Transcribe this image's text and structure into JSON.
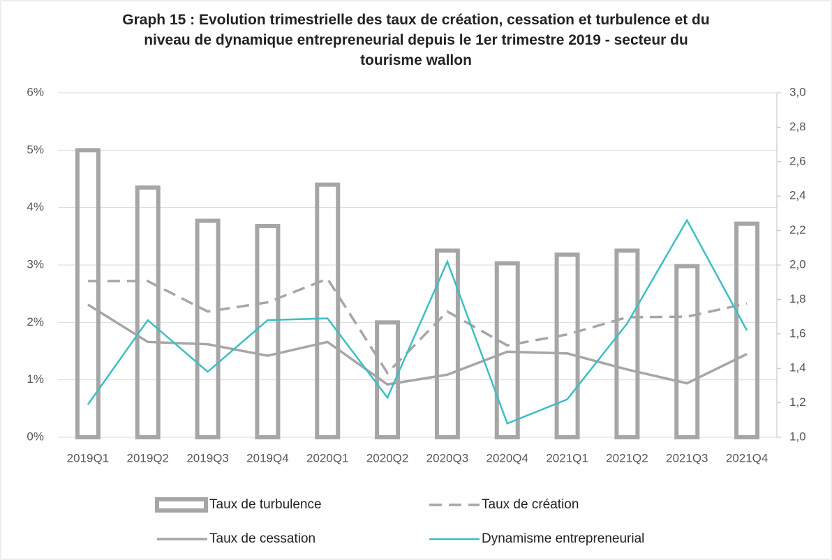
{
  "chart_data": {
    "type": "bar",
    "title": "Graph 15 : Evolution trimestrielle des taux de création, cessation et turbulence et du niveau de dynamique entrepreneurial depuis le 1er trimestre 2019 - secteur du tourisme wallon",
    "categories": [
      "2019Q1",
      "2019Q2",
      "2019Q3",
      "2019Q4",
      "2020Q1",
      "2020Q2",
      "2020Q3",
      "2020Q4",
      "2021Q1",
      "2021Q2",
      "2021Q3",
      "2021Q4"
    ],
    "ylim": [
      0,
      6
    ],
    "yticks": [
      {
        "value": 0,
        "label": "0%"
      },
      {
        "value": 1,
        "label": "1%"
      },
      {
        "value": 2,
        "label": "2%"
      },
      {
        "value": 3,
        "label": "3%"
      },
      {
        "value": 4,
        "label": "4%"
      },
      {
        "value": 5,
        "label": "5%"
      },
      {
        "value": 6,
        "label": "6%"
      }
    ],
    "y2lim": [
      1,
      3
    ],
    "y2ticks": [
      {
        "value": 1,
        "label": "1,0"
      },
      {
        "value": 1.2,
        "label": "1,2"
      },
      {
        "value": 1.4,
        "label": "1,4"
      },
      {
        "value": 1.6,
        "label": "1,6"
      },
      {
        "value": 1.8,
        "label": "1,8"
      },
      {
        "value": 2,
        "label": "2,0"
      },
      {
        "value": 2.2,
        "label": "2,2"
      },
      {
        "value": 2.4,
        "label": "2,4"
      },
      {
        "value": 2.6,
        "label": "2,6"
      },
      {
        "value": 2.8,
        "label": "2,8"
      },
      {
        "value": 3,
        "label": "3,0"
      }
    ],
    "grid": true,
    "series": [
      {
        "name": "Taux de turbulence",
        "type": "bar",
        "color": "#a6a6a6",
        "values": [
          5.0,
          4.35,
          3.77,
          3.68,
          4.4,
          2.0,
          3.25,
          3.03,
          3.18,
          3.25,
          2.98,
          3.72
        ]
      },
      {
        "name": "Taux de création",
        "type": "line",
        "dashed": true,
        "color": "#a6a6a6",
        "values": [
          2.72,
          2.72,
          2.19,
          2.35,
          2.76,
          1.12,
          2.19,
          1.6,
          1.79,
          2.09,
          2.1,
          2.33
        ]
      },
      {
        "name": "Taux de cessation",
        "type": "line",
        "color": "#a6a6a6",
        "values": [
          2.31,
          1.66,
          1.62,
          1.42,
          1.66,
          0.92,
          1.09,
          1.49,
          1.46,
          1.18,
          0.94,
          1.45
        ]
      },
      {
        "name": "Dynamisme entrepreneurial",
        "type": "line",
        "axis": "y2",
        "color": "#3bbfc4",
        "values": [
          1.19,
          1.68,
          1.38,
          1.68,
          1.69,
          1.23,
          2.02,
          1.08,
          1.22,
          1.66,
          2.26,
          1.62
        ]
      }
    ]
  }
}
